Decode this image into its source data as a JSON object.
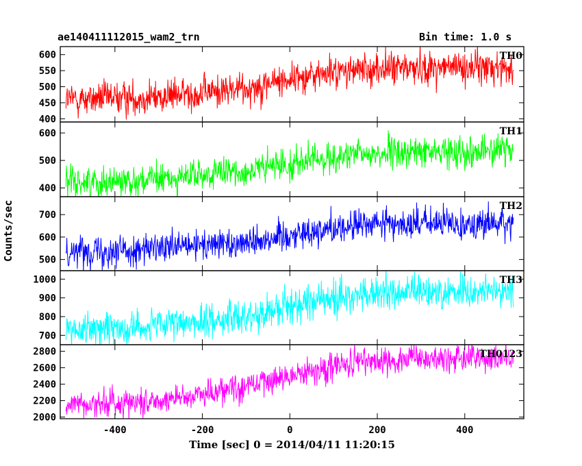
{
  "header": {
    "title": "ae140411112015_wam2_trn",
    "bin_time": "Bin time: 1.0 s"
  },
  "chart_data": {
    "type": "line",
    "xlabel": "Time [sec] 0 = 2014/04/11 11:20:15",
    "ylabel": "Counts/sec",
    "xlim": [
      -525,
      535
    ],
    "x_ticks": [
      -400,
      -200,
      0,
      200,
      400
    ],
    "x_start": -512,
    "x_end": 511,
    "bin_seconds": 1.0,
    "panels": [
      {
        "name": "TH0",
        "color": "#ff0000",
        "ylim": [
          390,
          625
        ],
        "y_ticks": [
          400,
          450,
          500,
          550,
          600
        ],
        "trend_x": [
          -512,
          -300,
          -100,
          0,
          100,
          200,
          300,
          400,
          511
        ],
        "trend_y": [
          460,
          468,
          495,
          525,
          545,
          555,
          560,
          560,
          560
        ],
        "noise": 26
      },
      {
        "name": "TH1",
        "color": "#00ff00",
        "ylim": [
          368,
          640
        ],
        "y_ticks": [
          400,
          500,
          600
        ],
        "trend_x": [
          -512,
          -300,
          -100,
          0,
          100,
          200,
          300,
          400,
          511
        ],
        "trend_y": [
          420,
          430,
          460,
          490,
          510,
          525,
          530,
          535,
          535
        ],
        "noise": 28
      },
      {
        "name": "TH2",
        "color": "#0000ff",
        "ylim": [
          450,
          780
        ],
        "y_ticks": [
          500,
          600,
          700
        ],
        "trend_x": [
          -512,
          -300,
          -100,
          0,
          100,
          200,
          300,
          400,
          511
        ],
        "trend_y": [
          540,
          545,
          580,
          610,
          640,
          660,
          660,
          660,
          660
        ],
        "noise": 35
      },
      {
        "name": "TH3",
        "color": "#00ffff",
        "ylim": [
          650,
          1045
        ],
        "y_ticks": [
          700,
          800,
          900,
          1000
        ],
        "trend_x": [
          -512,
          -300,
          -100,
          0,
          100,
          200,
          300,
          400,
          511
        ],
        "trend_y": [
          730,
          750,
          800,
          860,
          900,
          920,
          930,
          935,
          935
        ],
        "noise": 45
      },
      {
        "name": "TH0123",
        "color": "#ff00ff",
        "ylim": [
          1980,
          2880
        ],
        "y_ticks": [
          2000,
          2200,
          2400,
          2600,
          2800
        ],
        "trend_x": [
          -512,
          -300,
          -100,
          0,
          100,
          200,
          300,
          400,
          511
        ],
        "trend_y": [
          2150,
          2200,
          2380,
          2500,
          2620,
          2690,
          2700,
          2710,
          2710
        ],
        "noise": 85
      }
    ]
  }
}
